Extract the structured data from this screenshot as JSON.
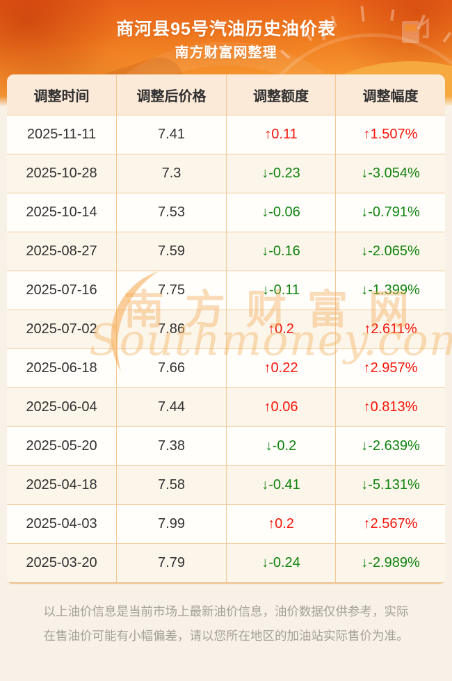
{
  "header": {
    "title": "商河县95号汽油历史油价表",
    "subtitle": "南方财富网整理"
  },
  "table": {
    "columns": [
      "调整时间",
      "调整后价格",
      "调整额度",
      "调整幅度"
    ],
    "rows": [
      {
        "date": "2025-11-11",
        "price": "7.41",
        "change": "↑0.11",
        "pct": "↑1.507%",
        "dir": "up"
      },
      {
        "date": "2025-10-28",
        "price": "7.3",
        "change": "↓-0.23",
        "pct": "↓-3.054%",
        "dir": "down"
      },
      {
        "date": "2025-10-14",
        "price": "7.53",
        "change": "↓-0.06",
        "pct": "↓-0.791%",
        "dir": "down"
      },
      {
        "date": "2025-08-27",
        "price": "7.59",
        "change": "↓-0.16",
        "pct": "↓-2.065%",
        "dir": "down"
      },
      {
        "date": "2025-07-16",
        "price": "7.75",
        "change": "↓-0.11",
        "pct": "↓-1.399%",
        "dir": "down"
      },
      {
        "date": "2025-07-02",
        "price": "7.86",
        "change": "↑0.2",
        "pct": "↑2.611%",
        "dir": "up"
      },
      {
        "date": "2025-06-18",
        "price": "7.66",
        "change": "↑0.22",
        "pct": "↑2.957%",
        "dir": "up"
      },
      {
        "date": "2025-06-04",
        "price": "7.44",
        "change": "↑0.06",
        "pct": "↑0.813%",
        "dir": "up"
      },
      {
        "date": "2025-05-20",
        "price": "7.38",
        "change": "↓-0.2",
        "pct": "↓-2.639%",
        "dir": "down"
      },
      {
        "date": "2025-04-18",
        "price": "7.58",
        "change": "↓-0.41",
        "pct": "↓-5.131%",
        "dir": "down"
      },
      {
        "date": "2025-04-03",
        "price": "7.99",
        "change": "↑0.2",
        "pct": "↑2.567%",
        "dir": "up"
      },
      {
        "date": "2025-03-20",
        "price": "7.79",
        "change": "↓-0.24",
        "pct": "↓-2.989%",
        "dir": "down"
      }
    ]
  },
  "watermark": {
    "cn": "南方财富网",
    "en": "Southmoney.com"
  },
  "footer": {
    "disclaimer": "以上油价信息是当前市场上最新油价信息，油价数据仅供参考，实际在售油价可能有小幅偏差，请以您所在地区的加油站实际售价为准。"
  },
  "colors": {
    "up_red": "#f71409",
    "down_green": "#0e830e",
    "header_orange": "#ef7a1f",
    "table_border": "#f4c897"
  }
}
